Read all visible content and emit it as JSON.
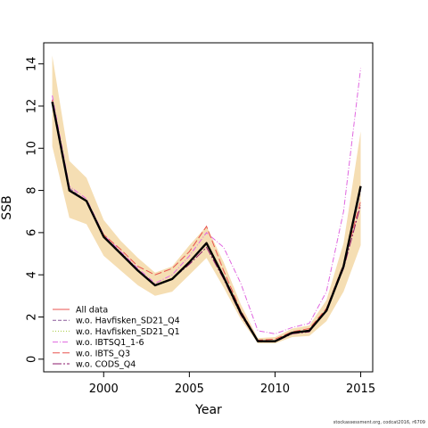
{
  "chart_data": {
    "type": "line",
    "xlabel": "Year",
    "ylabel": "SSB",
    "xlim": [
      1996.5,
      2015.7
    ],
    "ylim": [
      -0.6,
      15.0
    ],
    "xticks": [
      2000,
      2005,
      2010,
      2015
    ],
    "yticks": [
      0,
      2,
      4,
      6,
      8,
      10,
      12,
      14
    ],
    "x": [
      1997,
      1998,
      1999,
      2000,
      2001,
      2002,
      2003,
      2004,
      2005,
      2006,
      2007,
      2008,
      2009,
      2010,
      2011,
      2012,
      2013,
      2014,
      2015
    ],
    "band": {
      "color": "#f5deb3",
      "lower": [
        10.1,
        6.7,
        6.4,
        4.9,
        4.2,
        3.5,
        3.0,
        3.2,
        4.0,
        4.8,
        3.4,
        1.9,
        0.75,
        0.75,
        1.05,
        1.1,
        1.8,
        3.2,
        5.4
      ],
      "upper": [
        14.4,
        9.4,
        8.6,
        6.6,
        5.6,
        4.8,
        4.1,
        4.4,
        5.4,
        6.3,
        4.6,
        2.6,
        1.0,
        1.05,
        1.45,
        1.6,
        2.8,
        5.5,
        10.8
      ]
    },
    "series": [
      {
        "name": "All data",
        "color": "#e8534f",
        "dash": "",
        "values": [
          12.2,
          8.0,
          7.5,
          5.8,
          5.0,
          4.2,
          3.5,
          3.8,
          4.6,
          5.5,
          3.9,
          2.2,
          0.85,
          0.85,
          1.25,
          1.35,
          2.3,
          4.4,
          8.2
        ]
      },
      {
        "name": "w.o. Havfisken_SD21_Q4",
        "color": "#8b5a9c",
        "dash": "4,2",
        "values": [
          12.3,
          8.1,
          7.5,
          5.8,
          5.0,
          4.2,
          3.5,
          3.8,
          4.6,
          5.5,
          3.9,
          2.2,
          0.85,
          0.87,
          1.25,
          1.35,
          2.3,
          4.3,
          8.0
        ]
      },
      {
        "name": "w.o. Havfisken_SD21_Q1",
        "color": "#a5c93d",
        "dash": "1,2",
        "values": [
          12.2,
          8.0,
          7.5,
          5.8,
          5.0,
          4.2,
          3.5,
          3.8,
          4.6,
          5.5,
          3.9,
          2.2,
          0.85,
          0.85,
          1.25,
          1.35,
          2.3,
          4.4,
          8.2
        ]
      },
      {
        "name": "w.o. IBTSQ1_1-6",
        "color": "#e066e0",
        "dash": "6,2,1,2",
        "values": [
          12.5,
          8.2,
          7.6,
          5.9,
          5.1,
          4.3,
          3.6,
          4.0,
          4.9,
          6.0,
          5.3,
          3.6,
          1.35,
          1.2,
          1.5,
          1.7,
          3.2,
          7.0,
          13.8
        ]
      },
      {
        "name": "w.o. IBTS_Q3",
        "color": "#e8534f",
        "dash": "8,3",
        "values": [
          12.3,
          8.0,
          7.5,
          5.9,
          5.2,
          4.4,
          4.0,
          4.3,
          5.1,
          6.3,
          4.2,
          2.3,
          0.9,
          0.95,
          1.3,
          1.45,
          2.4,
          4.5,
          7.5
        ]
      },
      {
        "name": "w.o. CODS_Q4",
        "color": "#8b1a6b",
        "dash": "10,2,2,2",
        "values": [
          12.2,
          8.0,
          7.5,
          5.8,
          5.0,
          4.2,
          3.5,
          3.8,
          4.5,
          5.3,
          3.8,
          2.1,
          0.82,
          0.82,
          1.2,
          1.3,
          2.3,
          4.3,
          7.3
        ]
      }
    ],
    "main_line": {
      "color": "#000000",
      "values": [
        12.2,
        8.0,
        7.5,
        5.8,
        5.0,
        4.2,
        3.5,
        3.8,
        4.6,
        5.5,
        3.9,
        2.2,
        0.85,
        0.85,
        1.25,
        1.35,
        2.3,
        4.4,
        8.2
      ]
    },
    "legend": "bottom-left"
  },
  "footer": "stockassessment.org, codcat2016, r6709"
}
